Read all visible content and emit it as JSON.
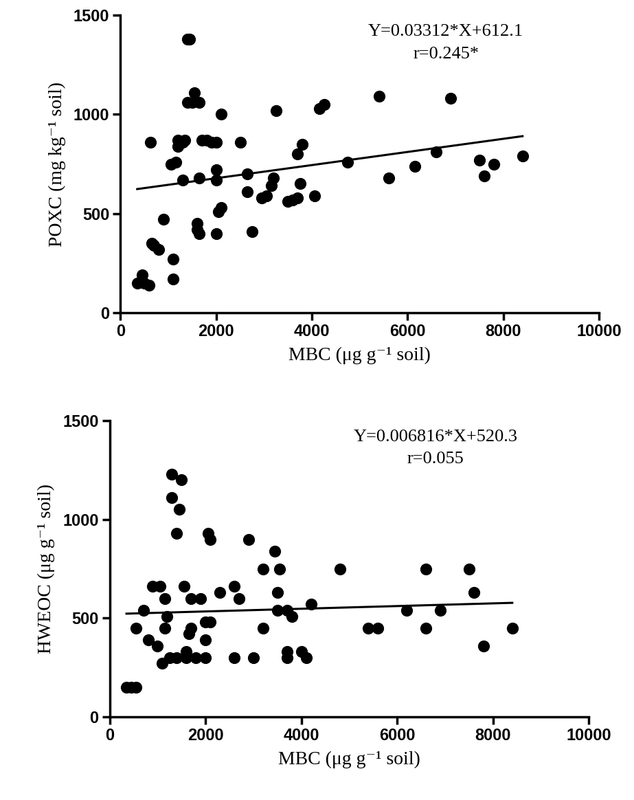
{
  "chart_data": [
    {
      "type": "scatter",
      "xlabel": "MBC (μg g⁻¹ soil)",
      "ylabel": "POXC (mg kg⁻¹ soil)",
      "annotations": [
        "Y=0.03312*X+612.1",
        "r=0.245*"
      ],
      "color": "#000000",
      "marker": "o",
      "x": [
        350,
        450,
        500,
        600,
        620,
        650,
        700,
        800,
        900,
        1050,
        1100,
        1100,
        1150,
        1200,
        1200,
        1300,
        1300,
        1350,
        1400,
        1450,
        1400,
        1500,
        1550,
        1600,
        1600,
        1650,
        1650,
        1650,
        1700,
        1800,
        1900,
        2000,
        2000,
        2000,
        2000,
        2050,
        2100,
        2100,
        2500,
        2650,
        2650,
        2750,
        2950,
        3050,
        3150,
        3200,
        3250,
        3500,
        3600,
        3700,
        3700,
        3750,
        3800,
        4050,
        4150,
        4250,
        4750,
        5400,
        5600,
        6150,
        6600,
        6900,
        7500,
        7600,
        7800,
        8400
      ],
      "values": [
        150,
        190,
        150,
        140,
        860,
        350,
        340,
        320,
        470,
        750,
        170,
        270,
        760,
        870,
        840,
        860,
        670,
        870,
        1380,
        1380,
        1060,
        1060,
        1110,
        450,
        420,
        400,
        680,
        1060,
        870,
        870,
        860,
        860,
        400,
        720,
        670,
        510,
        530,
        1000,
        860,
        700,
        610,
        410,
        580,
        590,
        640,
        680,
        1020,
        560,
        570,
        580,
        800,
        650,
        850,
        590,
        1030,
        1050,
        760,
        1090,
        680,
        740,
        810,
        1080,
        770,
        690,
        750,
        790
      ],
      "fit": {
        "slope": 0.03312,
        "intercept": 612.1,
        "x_start": 350,
        "x_end": 8400
      },
      "xlim": [
        0,
        10000
      ],
      "xticks": [
        0,
        2000,
        4000,
        6000,
        8000,
        10000
      ],
      "ylim": [
        0,
        1500
      ],
      "yticks": [
        0,
        500,
        1000,
        1500
      ],
      "grid": false
    },
    {
      "type": "scatter",
      "xlabel": "MBC (μg g⁻¹ soil)",
      "ylabel": "HWEOC (μg g⁻¹ soil)",
      "annotations": [
        "Y=0.006816*X+520.3",
        "r=0.055"
      ],
      "color": "#000000",
      "marker": "o",
      "x": [
        350,
        450,
        550,
        550,
        700,
        800,
        900,
        1000,
        1050,
        1100,
        1150,
        1150,
        1200,
        1250,
        1300,
        1300,
        1400,
        1450,
        1400,
        1500,
        1550,
        1600,
        1600,
        1650,
        1700,
        1700,
        1800,
        1900,
        2000,
        2000,
        2000,
        2050,
        2100,
        2100,
        2300,
        2600,
        2600,
        2700,
        2900,
        3000,
        3200,
        3200,
        3450,
        3500,
        3500,
        3550,
        3700,
        3700,
        3800,
        3700,
        4000,
        4100,
        4200,
        4800,
        5400,
        5600,
        6200,
        6600,
        6600,
        6900,
        7500,
        7600,
        7800,
        8400
      ],
      "values": [
        150,
        150,
        150,
        450,
        540,
        390,
        660,
        360,
        660,
        270,
        450,
        600,
        510,
        300,
        1230,
        1110,
        930,
        1050,
        300,
        1200,
        660,
        330,
        300,
        420,
        450,
        600,
        300,
        600,
        390,
        300,
        480,
        930,
        900,
        480,
        630,
        660,
        300,
        600,
        900,
        300,
        450,
        750,
        840,
        630,
        540,
        750,
        300,
        540,
        510,
        330,
        330,
        300,
        570,
        750,
        450,
        450,
        540,
        450,
        750,
        540,
        750,
        630,
        360,
        450
      ],
      "fit": {
        "slope": 0.006816,
        "intercept": 520.3,
        "x_start": 350,
        "x_end": 8400
      },
      "xlim": [
        0,
        10000
      ],
      "xticks": [
        0,
        2000,
        4000,
        6000,
        8000,
        10000
      ],
      "ylim": [
        0,
        1500
      ],
      "yticks": [
        0,
        500,
        1000,
        1500
      ],
      "grid": false
    }
  ]
}
